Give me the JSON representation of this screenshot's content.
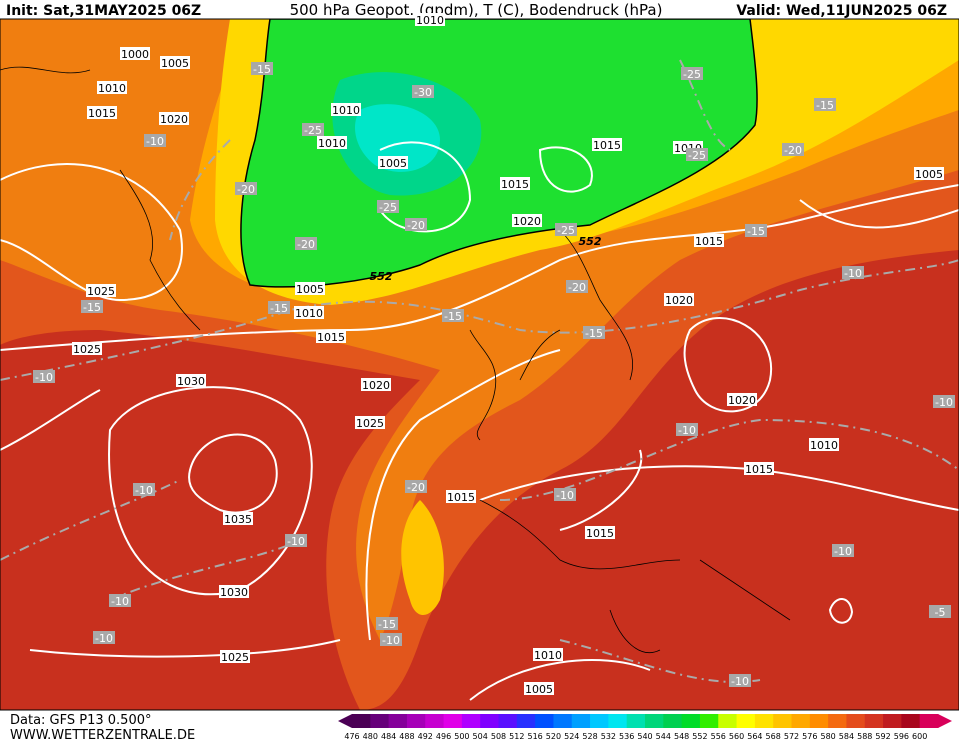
{
  "header": {
    "init": "Init: Sat,31MAY2025 06Z",
    "title": "500 hPa Geopot. (gpdm), T (C), Bodendruck (hPa)",
    "valid": "Valid: Wed,11JUN2025 06Z"
  },
  "footer": {
    "data": "Data: GFS P13 0.500°",
    "site": "WWW.WETTERZENTRALE.DE"
  },
  "colorbar": {
    "labels": [
      "476",
      "480",
      "484",
      "488",
      "492",
      "496",
      "500",
      "504",
      "508",
      "512",
      "516",
      "520",
      "524",
      "528",
      "532",
      "536",
      "540",
      "544",
      "548",
      "552",
      "556",
      "560",
      "564",
      "568",
      "572",
      "576",
      "580",
      "584",
      "588",
      "592",
      "596",
      "600"
    ],
    "colors": [
      "#4b0055",
      "#66007a",
      "#85009a",
      "#a600b8",
      "#c600d0",
      "#e000e8",
      "#b000ff",
      "#8000ff",
      "#5a10ff",
      "#2830ff",
      "#0050ff",
      "#0078ff",
      "#00a0ff",
      "#00c8ff",
      "#00e6f0",
      "#00e0b0",
      "#00d67a",
      "#00d050",
      "#00dc28",
      "#30ee00",
      "#c8ff00",
      "#ffff00",
      "#ffe200",
      "#ffc400",
      "#ffa800",
      "#ff8c00",
      "#f46a10",
      "#e44c1c",
      "#d43420",
      "#c01c20",
      "#a8061c",
      "#d8005a"
    ]
  },
  "map": {
    "isobar_labels": [
      "1010",
      "1000",
      "1005",
      "1010",
      "1015",
      "1020",
      "1010",
      "1010",
      "1005",
      "1015",
      "1010",
      "1015",
      "1020",
      "1005",
      "1015",
      "1025",
      "1005",
      "1010",
      "1015",
      "1020",
      "1025",
      "1030",
      "1020",
      "1020",
      "1025",
      "1010",
      "1015",
      "1015",
      "1035",
      "1015",
      "1030",
      "1025",
      "1010",
      "1005"
    ],
    "temperature_labels": [
      "-15",
      "-25",
      "-30",
      "-10",
      "-25",
      "-25",
      "-15",
      "-20",
      "-20",
      "-25",
      "-20",
      "-20",
      "-25",
      "-15",
      "-20",
      "-10",
      "-15",
      "-15",
      "-15",
      "-15",
      "-10",
      "-10",
      "-10",
      "-20",
      "-10",
      "-10",
      "-10",
      "-10",
      "-10",
      "-5",
      "-15",
      "-10",
      "-10",
      "-10"
    ],
    "geopotential_labels": [
      "552",
      "552"
    ]
  }
}
